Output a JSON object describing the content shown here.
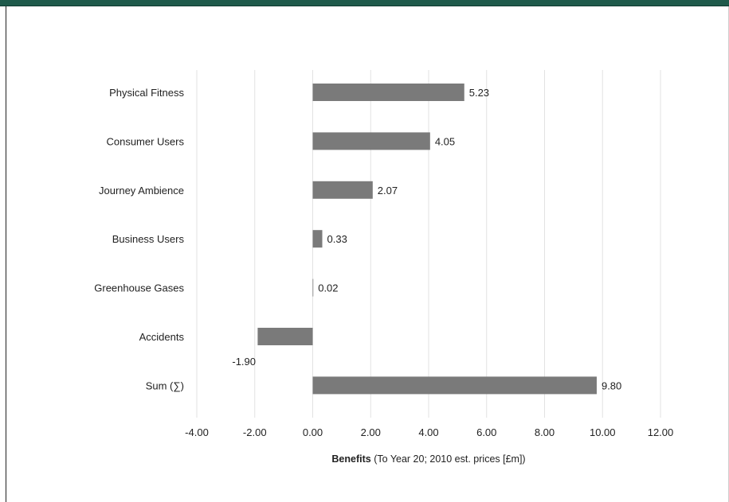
{
  "chart_data": {
    "type": "bar",
    "orientation": "horizontal",
    "categories": [
      "Physical Fitness",
      "Consumer Users",
      "Journey Ambience",
      "Business Users",
      "Greenhouse Gases",
      "Accidents",
      "Sum (∑)"
    ],
    "values": [
      5.23,
      4.05,
      2.07,
      0.33,
      0.02,
      -1.9,
      9.8
    ],
    "data_labels": [
      "5.23",
      "4.05",
      "2.07",
      "0.33",
      "0.02",
      "-1.90",
      "9.80"
    ],
    "xlim": [
      -4,
      12
    ],
    "x_ticks": [
      -4,
      -2,
      0,
      2,
      4,
      6,
      8,
      10,
      12
    ],
    "x_tick_labels": [
      "-4.00",
      "-2.00",
      "0.00",
      "2.00",
      "4.00",
      "6.00",
      "8.00",
      "10.00",
      "12.00"
    ],
    "xlabel_bold": "Benefits",
    "xlabel_rest": " (To Year 20; 2010 est. prices [£m])",
    "grid": "vertical",
    "bar_color": "#7a7a7a",
    "grid_color": "#e2e2e2"
  }
}
